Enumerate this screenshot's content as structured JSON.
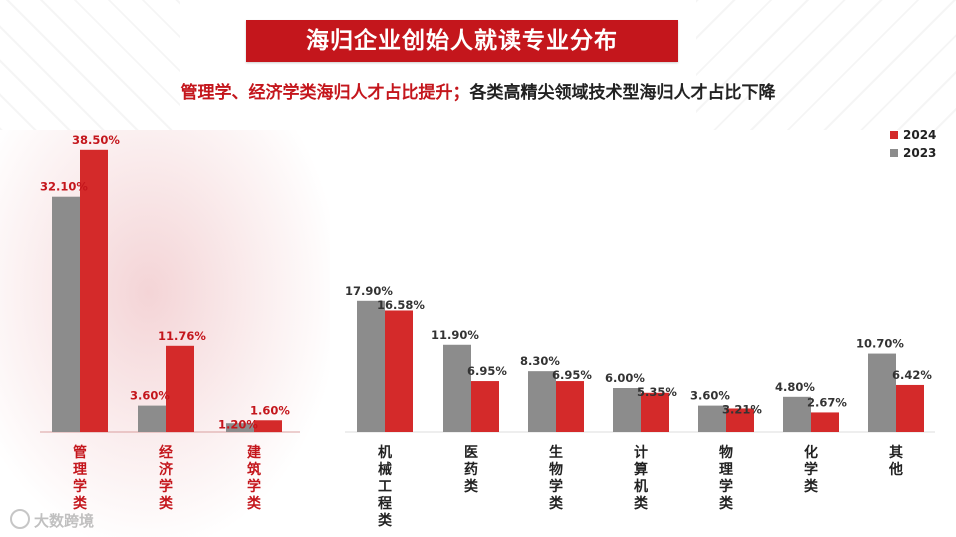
{
  "header": {
    "title": "海归企业创始人就读专业分布"
  },
  "subtitle": {
    "part1": "管理学、经济学类海归人才占比提升；",
    "part2": "各类高精尖领域技术型海归人才占比下降"
  },
  "watermark": "大数跨境",
  "colors": {
    "series_2024": "#d42a2a",
    "series_2023": "#8c8c8c",
    "highlight_label": "#c4161c",
    "banner": "#c4161c"
  },
  "chart_data": {
    "type": "bar",
    "categories": [
      "管理学类",
      "经济学类",
      "建筑学类",
      "机械工程类",
      "医药类",
      "生物学类",
      "计算机类",
      "物理学类",
      "化学类",
      "其他"
    ],
    "series": [
      {
        "name": "2023",
        "values": [
          32.1,
          3.6,
          1.2,
          17.9,
          11.9,
          8.3,
          6.0,
          3.6,
          4.8,
          10.7
        ],
        "labels": [
          "32.10%",
          "3.60%",
          "1.20%",
          "17.90%",
          "11.90%",
          "8.30%",
          "6.00%",
          "3.60%",
          "4.80%",
          "10.70%"
        ]
      },
      {
        "name": "2024",
        "values": [
          38.5,
          11.76,
          1.6,
          16.58,
          6.95,
          6.95,
          5.35,
          3.21,
          2.67,
          6.42
        ],
        "labels": [
          "38.50%",
          "11.76%",
          "1.60%",
          "16.58%",
          "6.95%",
          "6.95%",
          "5.35%",
          "3.21%",
          "2.67%",
          "6.42%"
        ]
      }
    ],
    "highlighted_categories": [
      "管理学类",
      "经济学类",
      "建筑学类"
    ],
    "legend": [
      "2024",
      "2023"
    ],
    "legend_position": "top-right",
    "grid": false,
    "ylim": [
      0,
      40
    ]
  }
}
